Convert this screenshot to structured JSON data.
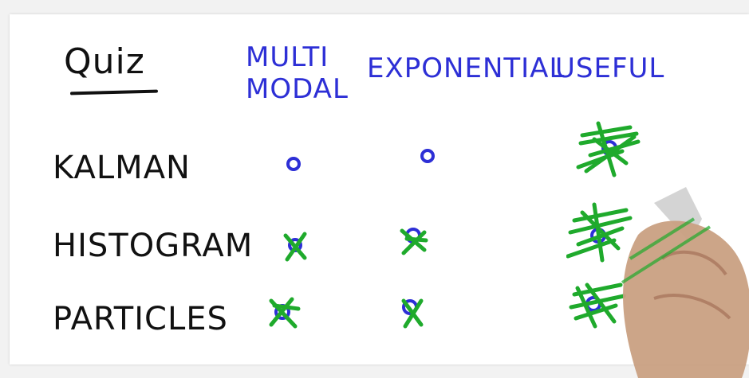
{
  "title": "Quiz",
  "columns": {
    "multimodal_line1": "MULTI",
    "multimodal_line2": "MODAL",
    "exponential": "EXPONENTIAL",
    "useful": "USEFUL"
  },
  "rows": {
    "kalman": "KALMAN",
    "histogram": "HISTOGRAM",
    "particles": "PARTICLES"
  },
  "colors": {
    "ink_black": "#111111",
    "ink_blue": "#2d2fd6",
    "ink_green": "#1faa2c",
    "board": "#ffffff"
  },
  "answers": {
    "kalman": {
      "multimodal": "circle",
      "exponential": "circle",
      "useful": "check"
    },
    "histogram": {
      "multimodal": "check",
      "exponential": "check",
      "useful": "check"
    },
    "particles": {
      "multimodal": "check",
      "exponential": "check",
      "useful": "check"
    }
  }
}
